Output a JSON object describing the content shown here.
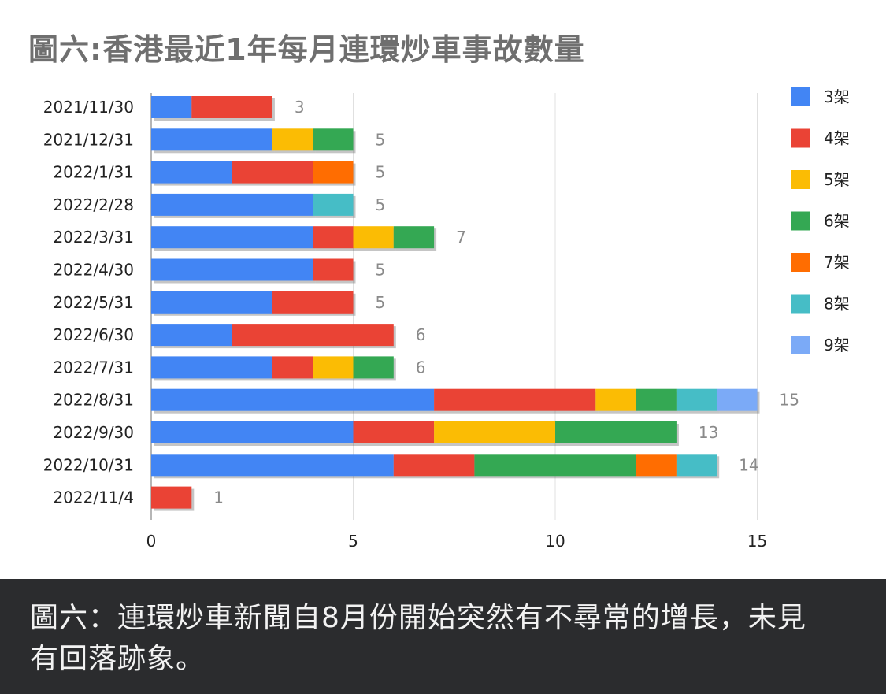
{
  "chart_data": {
    "type": "bar",
    "orientation": "horizontal",
    "stacked": true,
    "title": "圖六:香港最近1年每月連環炒車事故數量",
    "xlabel": "",
    "ylabel": "",
    "xlim": [
      0,
      15
    ],
    "x_ticks": [
      "0",
      "5",
      "10",
      "15"
    ],
    "grid": "vertical",
    "legend_position": "right",
    "categories": [
      "2021/11/30",
      "2021/12/31",
      "2022/1/31",
      "2022/2/28",
      "2022/3/31",
      "2022/4/30",
      "2022/5/31",
      "2022/6/30",
      "2022/7/31",
      "2022/8/31",
      "2022/9/30",
      "2022/10/31",
      "2022/11/4"
    ],
    "series": [
      {
        "name": "3架",
        "color": "#4285f4",
        "values": [
          1,
          3,
          2,
          4,
          4,
          4,
          3,
          2,
          3,
          7,
          5,
          6,
          0
        ]
      },
      {
        "name": "4架",
        "color": "#ea4335",
        "values": [
          2,
          0,
          2,
          0,
          1,
          1,
          2,
          4,
          1,
          4,
          2,
          2,
          1
        ]
      },
      {
        "name": "5架",
        "color": "#fbbc04",
        "values": [
          0,
          1,
          0,
          0,
          1,
          0,
          0,
          0,
          1,
          1,
          3,
          0,
          0
        ]
      },
      {
        "name": "6架",
        "color": "#34a853",
        "values": [
          0,
          1,
          0,
          0,
          1,
          0,
          0,
          0,
          1,
          1,
          3,
          4,
          0
        ]
      },
      {
        "name": "7架",
        "color": "#ff6d01",
        "values": [
          0,
          0,
          1,
          0,
          0,
          0,
          0,
          0,
          0,
          0,
          0,
          1,
          0
        ]
      },
      {
        "name": "8架",
        "color": "#46bdc6",
        "values": [
          0,
          0,
          0,
          1,
          0,
          0,
          0,
          0,
          0,
          1,
          0,
          1,
          0
        ]
      },
      {
        "name": "9架",
        "color": "#7baaf7",
        "values": [
          0,
          0,
          0,
          0,
          0,
          0,
          0,
          0,
          0,
          1,
          0,
          0,
          0
        ]
      }
    ],
    "totals": [
      3,
      5,
      5,
      5,
      7,
      5,
      5,
      6,
      6,
      15,
      13,
      14,
      1
    ]
  },
  "caption": "圖六：連環炒車新聞自8月份開始突然有不尋常的增長，未見有回落跡象。"
}
